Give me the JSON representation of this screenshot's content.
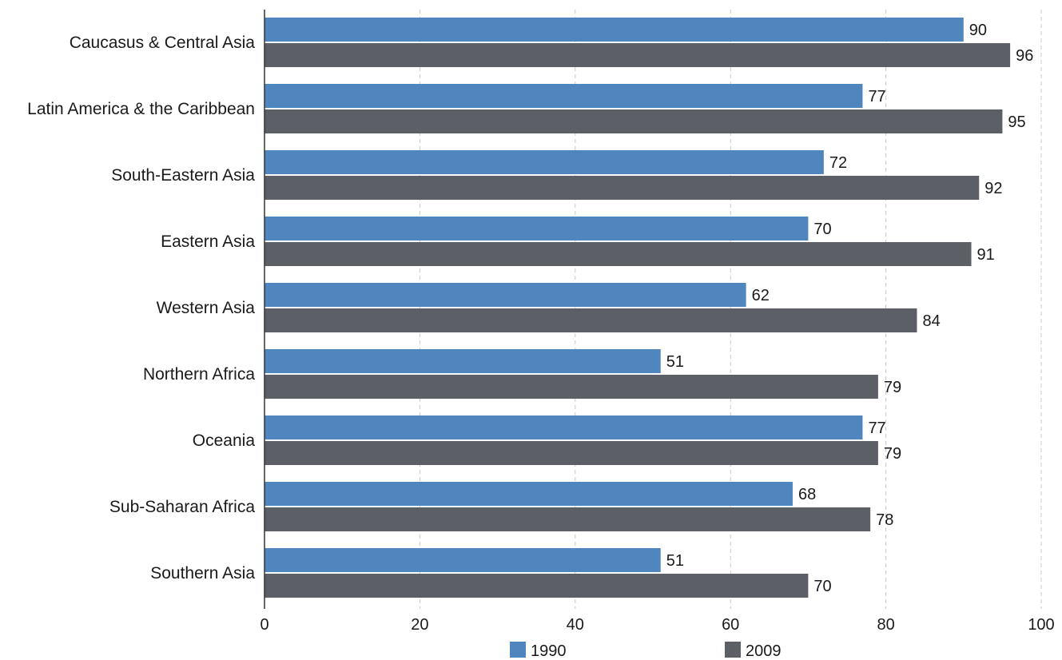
{
  "chart_data": {
    "type": "bar",
    "orientation": "horizontal",
    "categories": [
      "Caucasus & Central Asia",
      "Latin America & the Caribbean",
      "South-Eastern Asia",
      "Eastern Asia",
      "Western Asia",
      "Northern Africa",
      "Oceania",
      "Sub-Saharan Africa",
      "Southern Asia"
    ],
    "series": [
      {
        "name": "1990",
        "color": "#4f86be",
        "values": [
          90,
          77,
          72,
          70,
          62,
          51,
          77,
          68,
          51
        ]
      },
      {
        "name": "2009",
        "color": "#5c5f66",
        "values": [
          96,
          95,
          92,
          91,
          84,
          79,
          79,
          78,
          70
        ]
      }
    ],
    "xlim": [
      0,
      100
    ],
    "xticks": [
      0,
      20,
      40,
      60,
      80,
      100
    ],
    "grid": "vertical-dashed",
    "legend_position": "bottom",
    "title": "",
    "xlabel": "",
    "ylabel": ""
  }
}
